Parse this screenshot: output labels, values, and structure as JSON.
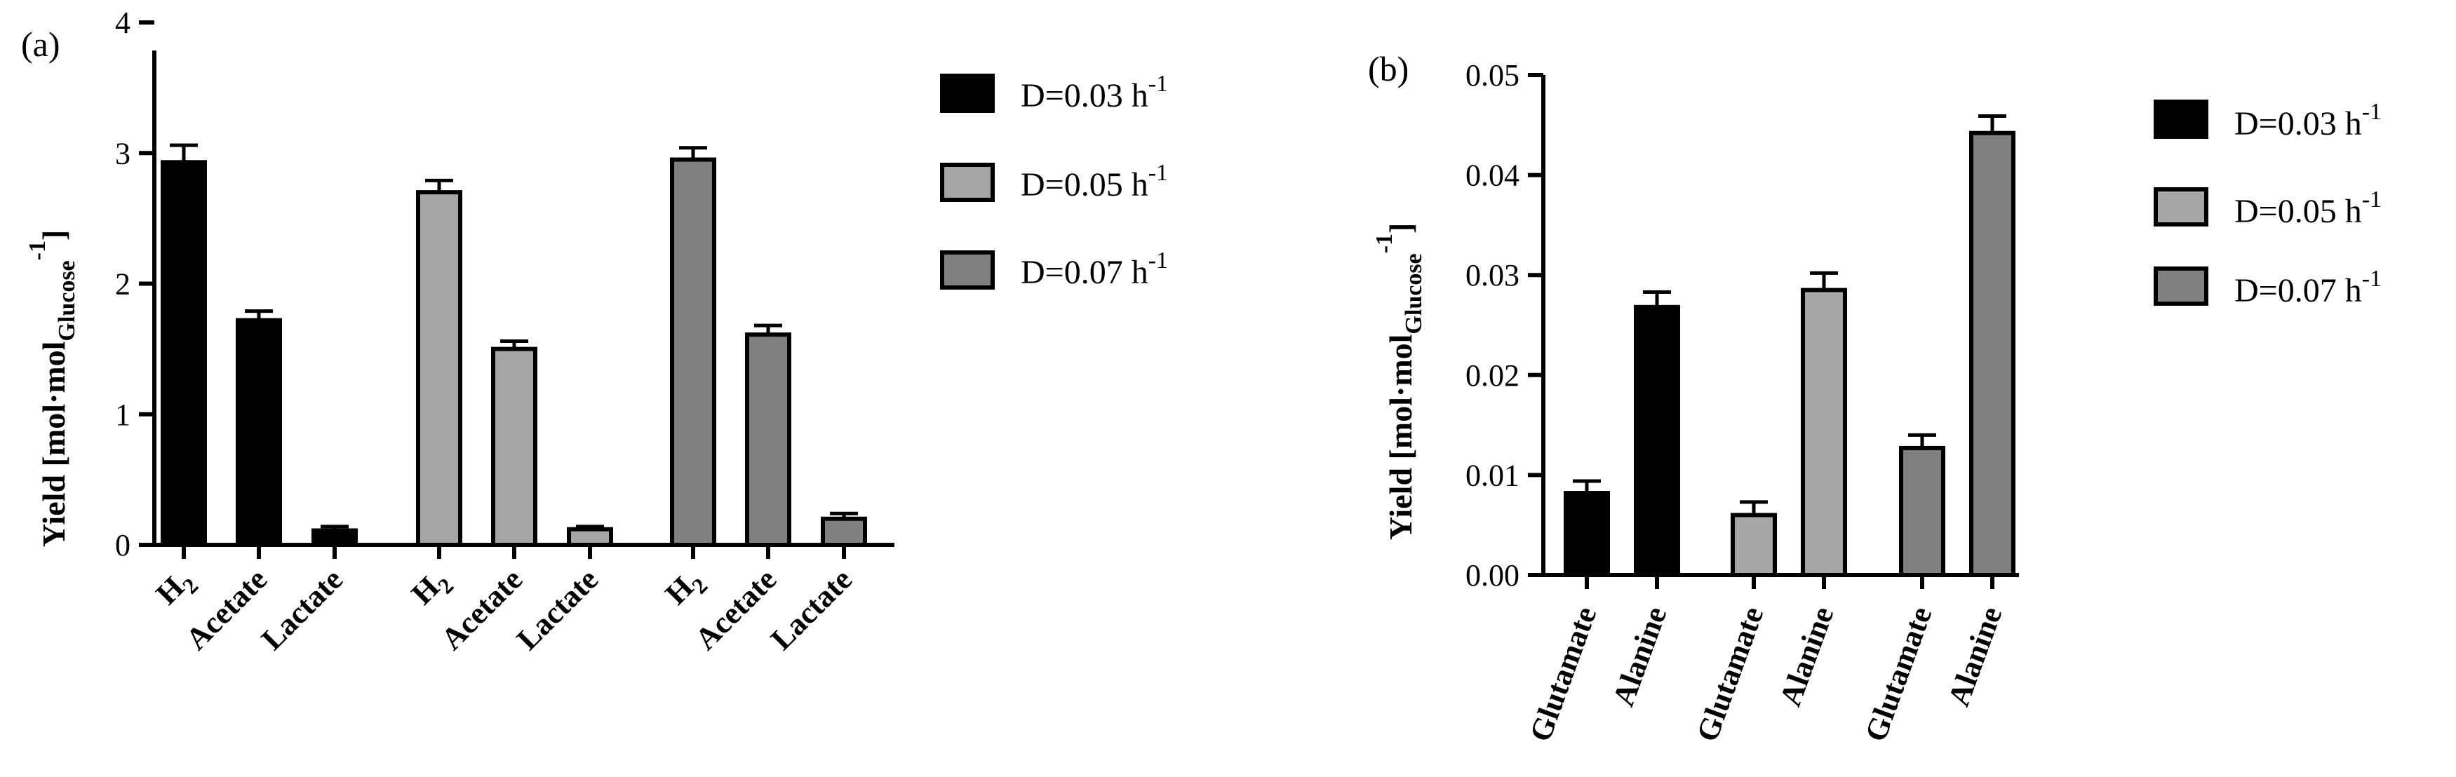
{
  "chart_data": [
    {
      "type": "bar",
      "panel_label": "(a)",
      "ylabel": "Yield [mol·mol",
      "ylabel_sub": "Glucose",
      "ylabel_sup": "-1",
      "ylabel_end": "]",
      "ylim": [
        0,
        4
      ],
      "yticks": [
        "0",
        "1",
        "2",
        "3",
        "4"
      ],
      "grid": false,
      "legend_position": "right",
      "groups": [
        {
          "series": "D=0.03 h",
          "color": "#000000",
          "bars": [
            {
              "label": "H",
              "label_sub": "2",
              "value": 2.93,
              "error": 0.13
            },
            {
              "label": "Acetate",
              "value": 1.72,
              "error": 0.07
            },
            {
              "label": "Lactate",
              "value": 0.11,
              "error": 0.03
            }
          ]
        },
        {
          "series": "D=0.05 h",
          "color": "#a6a6a6",
          "bars": [
            {
              "label": "H",
              "label_sub": "2",
              "value": 2.7,
              "error": 0.09
            },
            {
              "label": "Acetate",
              "value": 1.5,
              "error": 0.06
            },
            {
              "label": "Lactate",
              "value": 0.12,
              "error": 0.02
            }
          ]
        },
        {
          "series": "D=0.07 h",
          "color": "#808080",
          "bars": [
            {
              "label": "H",
              "label_sub": "2",
              "value": 2.95,
              "error": 0.09
            },
            {
              "label": "Acetate",
              "value": 1.61,
              "error": 0.07
            },
            {
              "label": "Lactate",
              "value": 0.2,
              "error": 0.04
            }
          ]
        }
      ],
      "legend": [
        {
          "text": "D=0.03 h",
          "sup": "-1",
          "color": "#000000"
        },
        {
          "text": "D=0.05 h",
          "sup": "-1",
          "color": "#a6a6a6"
        },
        {
          "text": "D=0.07 h",
          "sup": "-1",
          "color": "#808080"
        }
      ]
    },
    {
      "type": "bar",
      "panel_label": "(b)",
      "ylabel": "Yield [mol·mol",
      "ylabel_sub": "Glucose",
      "ylabel_sup": "-1",
      "ylabel_end": "]",
      "ylim": [
        0,
        0.05
      ],
      "yticks": [
        "0.00",
        "0.01",
        "0.02",
        "0.03",
        "0.04",
        "0.05"
      ],
      "grid": false,
      "legend_position": "right",
      "groups": [
        {
          "series": "D=0.03 h",
          "color": "#000000",
          "bars": [
            {
              "label": "Glutamate",
              "value": 0.0082,
              "error": 0.0012
            },
            {
              "label": "Alanine",
              "value": 0.0268,
              "error": 0.0015
            }
          ]
        },
        {
          "series": "D=0.05 h",
          "color": "#a6a6a6",
          "bars": [
            {
              "label": "Glutamate",
              "value": 0.006,
              "error": 0.0013
            },
            {
              "label": "Alanine",
              "value": 0.0285,
              "error": 0.0017
            }
          ]
        },
        {
          "series": "D=0.07 h",
          "color": "#808080",
          "bars": [
            {
              "label": "Glutamate",
              "value": 0.0127,
              "error": 0.0013
            },
            {
              "label": "Alanine",
              "value": 0.0442,
              "error": 0.0017
            }
          ]
        }
      ],
      "legend": [
        {
          "text": "D=0.03 h",
          "sup": "-1",
          "color": "#000000"
        },
        {
          "text": "D=0.05 h",
          "sup": "-1",
          "color": "#a6a6a6"
        },
        {
          "text": "D=0.07 h",
          "sup": "-1",
          "color": "#808080"
        }
      ]
    }
  ]
}
